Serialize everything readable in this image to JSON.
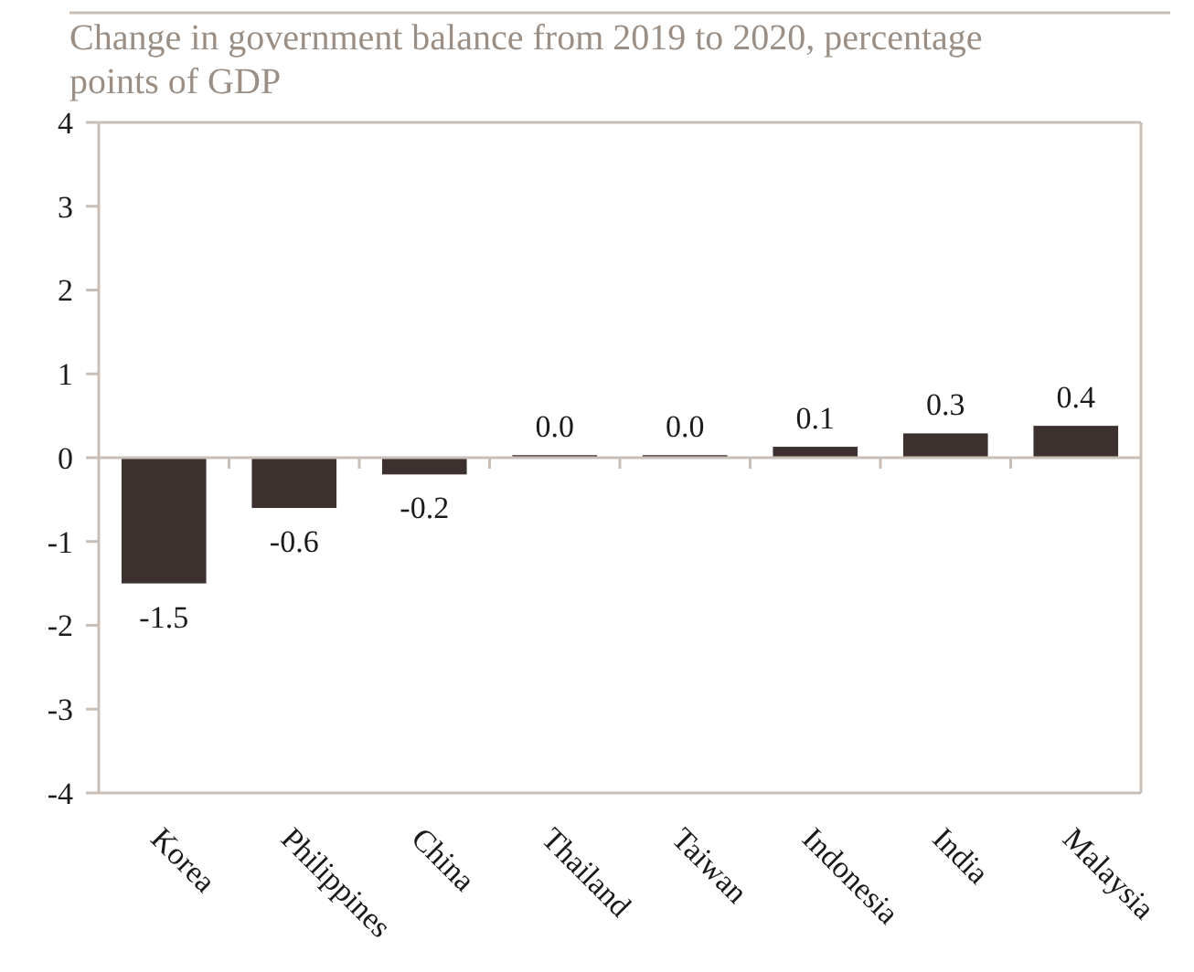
{
  "chart_data": {
    "type": "bar",
    "title": "Change in government balance from 2019 to 2020, percentage points of GDP",
    "categories": [
      "Korea",
      "Philippines",
      "China",
      "Thailand",
      "Taiwan",
      "Indonesia",
      "India",
      "Malaysia"
    ],
    "values": [
      -1.5,
      -0.6,
      -0.2,
      0.03,
      0.03,
      0.13,
      0.29,
      0.38
    ],
    "value_labels": [
      "-1.5",
      "-0.6",
      "-0.2",
      "0.0",
      "0.0",
      "0.1",
      "0.3",
      "0.4"
    ],
    "color": "#3d3130",
    "ylim": [
      -4,
      4
    ],
    "yticks": [
      -4,
      -3,
      -2,
      -1,
      0,
      1,
      2,
      3,
      4
    ]
  }
}
